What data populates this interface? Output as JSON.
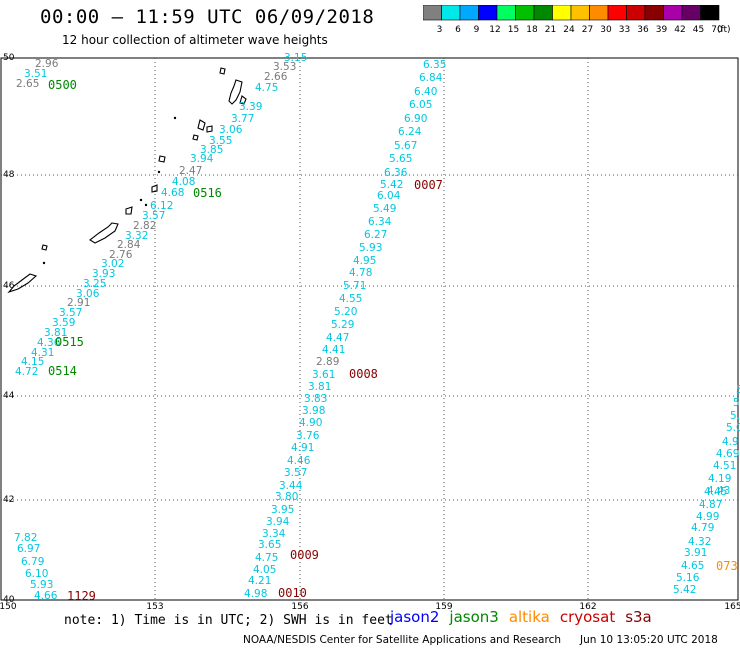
{
  "header": {
    "title": "00:00 – 11:59 UTC 06/09/2018",
    "subtitle": "12 hour collection of altimeter wave heights"
  },
  "colorbar": {
    "unit": "(ft)",
    "swatches": [
      {
        "label": "3",
        "color": "#808080"
      },
      {
        "label": "6",
        "color": "#00e8e8"
      },
      {
        "label": "9",
        "color": "#00a8ff"
      },
      {
        "label": "12",
        "color": "#0000ff"
      },
      {
        "label": "15",
        "color": "#00ff60"
      },
      {
        "label": "18",
        "color": "#00c000"
      },
      {
        "label": "21",
        "color": "#008800"
      },
      {
        "label": "24",
        "color": "#ffff00"
      },
      {
        "label": "27",
        "color": "#ffc000"
      },
      {
        "label": "30",
        "color": "#ff8c00"
      },
      {
        "label": "33",
        "color": "#ff0000"
      },
      {
        "label": "36",
        "color": "#cc0000"
      },
      {
        "label": "39",
        "color": "#880000"
      },
      {
        "label": "42",
        "color": "#aa00aa"
      },
      {
        "label": "45",
        "color": "#660066"
      },
      {
        "label": "70",
        "color": "#000000"
      }
    ]
  },
  "axes": {
    "lon_labels": [
      "150",
      "153",
      "156",
      "159",
      "162",
      "165"
    ],
    "lat_labels": [
      "50",
      "48",
      "46",
      "44",
      "42",
      "40"
    ]
  },
  "track_times": [
    "0500",
    "0516",
    "0515",
    "0514",
    "1129",
    "0007",
    "0008",
    "0009",
    "0010",
    "073"
  ],
  "readings": [
    {
      "t": "2.96",
      "c": "gray"
    },
    {
      "t": "3.51",
      "c": "cyan"
    },
    {
      "t": "2.65",
      "c": "gray"
    },
    {
      "t": "3.15",
      "c": "cyan"
    },
    {
      "t": "3.53",
      "c": "gray"
    },
    {
      "t": "2.66",
      "c": "gray"
    },
    {
      "t": "4.75",
      "c": "cyan"
    },
    {
      "t": "3.39",
      "c": "cyan"
    },
    {
      "t": "3.77",
      "c": "cyan"
    },
    {
      "t": "3.06",
      "c": "cyan"
    },
    {
      "t": "3.55",
      "c": "cyan"
    },
    {
      "t": "3.85",
      "c": "cyan"
    },
    {
      "t": "3.94",
      "c": "cyan"
    },
    {
      "t": "2.47",
      "c": "gray"
    },
    {
      "t": "4.08",
      "c": "cyan"
    },
    {
      "t": "4.68",
      "c": "cyan"
    },
    {
      "t": "6.12",
      "c": "cyan"
    },
    {
      "t": "3.57",
      "c": "cyan"
    },
    {
      "t": "2.82",
      "c": "gray"
    },
    {
      "t": "3.32",
      "c": "cyan"
    },
    {
      "t": "2.84",
      "c": "gray"
    },
    {
      "t": "2.76",
      "c": "gray"
    },
    {
      "t": "3.02",
      "c": "cyan"
    },
    {
      "t": "3.93",
      "c": "cyan"
    },
    {
      "t": "3.25",
      "c": "cyan"
    },
    {
      "t": "3.06",
      "c": "cyan"
    },
    {
      "t": "2.91",
      "c": "gray"
    },
    {
      "t": "3.57",
      "c": "cyan"
    },
    {
      "t": "3.59",
      "c": "cyan"
    },
    {
      "t": "3.81",
      "c": "cyan"
    },
    {
      "t": "4.36",
      "c": "cyan"
    },
    {
      "t": "4.31",
      "c": "cyan"
    },
    {
      "t": "4.15",
      "c": "cyan"
    },
    {
      "t": "4.72",
      "c": "cyan"
    },
    {
      "t": "6.35",
      "c": "cyan"
    },
    {
      "t": "6.84",
      "c": "cyan"
    },
    {
      "t": "6.40",
      "c": "cyan"
    },
    {
      "t": "6.05",
      "c": "cyan"
    },
    {
      "t": "6.90",
      "c": "cyan"
    },
    {
      "t": "6.24",
      "c": "cyan"
    },
    {
      "t": "5.67",
      "c": "cyan"
    },
    {
      "t": "5.65",
      "c": "cyan"
    },
    {
      "t": "6.36",
      "c": "cyan"
    },
    {
      "t": "5.42",
      "c": "cyan"
    },
    {
      "t": "6.04",
      "c": "cyan"
    },
    {
      "t": "5.49",
      "c": "cyan"
    },
    {
      "t": "6.34",
      "c": "cyan"
    },
    {
      "t": "6.27",
      "c": "cyan"
    },
    {
      "t": "5.93",
      "c": "cyan"
    },
    {
      "t": "4.95",
      "c": "cyan"
    },
    {
      "t": "4.78",
      "c": "cyan"
    },
    {
      "t": "5.71",
      "c": "cyan"
    },
    {
      "t": "4.55",
      "c": "cyan"
    },
    {
      "t": "5.20",
      "c": "cyan"
    },
    {
      "t": "5.29",
      "c": "cyan"
    },
    {
      "t": "4.47",
      "c": "cyan"
    },
    {
      "t": "4.41",
      "c": "cyan"
    },
    {
      "t": "2.89",
      "c": "gray"
    },
    {
      "t": "3.61",
      "c": "cyan"
    },
    {
      "t": "3.81",
      "c": "cyan"
    },
    {
      "t": "3.83",
      "c": "cyan"
    },
    {
      "t": "3.98",
      "c": "cyan"
    },
    {
      "t": "4.90",
      "c": "cyan"
    },
    {
      "t": "3.76",
      "c": "cyan"
    },
    {
      "t": "4.91",
      "c": "cyan"
    },
    {
      "t": "4.46",
      "c": "cyan"
    },
    {
      "t": "3.57",
      "c": "cyan"
    },
    {
      "t": "3.44",
      "c": "cyan"
    },
    {
      "t": "3.80",
      "c": "cyan"
    },
    {
      "t": "3.95",
      "c": "cyan"
    },
    {
      "t": "3.94",
      "c": "cyan"
    },
    {
      "t": "3.34",
      "c": "cyan"
    },
    {
      "t": "3.65",
      "c": "cyan"
    },
    {
      "t": "4.75",
      "c": "cyan"
    },
    {
      "t": "4.05",
      "c": "cyan"
    },
    {
      "t": "4.21",
      "c": "cyan"
    },
    {
      "t": "4.98",
      "c": "cyan"
    },
    {
      "t": "7.82",
      "c": "cyan"
    },
    {
      "t": "6.97",
      "c": "cyan"
    },
    {
      "t": "6.79",
      "c": "cyan"
    },
    {
      "t": "6.10",
      "c": "cyan"
    },
    {
      "t": "5.93",
      "c": "cyan"
    },
    {
      "t": "4.66",
      "c": "cyan"
    },
    {
      "t": "5",
      "c": "cyan"
    },
    {
      "t": "5.0",
      "c": "cyan"
    },
    {
      "t": "5.",
      "c": "cyan"
    },
    {
      "t": "5.0",
      "c": "cyan"
    },
    {
      "t": "4.9",
      "c": "cyan"
    },
    {
      "t": "4.69",
      "c": "cyan"
    },
    {
      "t": "4.51",
      "c": "cyan"
    },
    {
      "t": "4.19",
      "c": "cyan"
    },
    {
      "t": "4.43",
      "c": "cyan"
    },
    {
      "t": "4.45",
      "c": "cyan"
    },
    {
      "t": "4.87",
      "c": "cyan"
    },
    {
      "t": "4.99",
      "c": "cyan"
    },
    {
      "t": "4.79",
      "c": "cyan"
    },
    {
      "t": "4.32",
      "c": "cyan"
    },
    {
      "t": "3.91",
      "c": "cyan"
    },
    {
      "t": "4.65",
      "c": "cyan"
    },
    {
      "t": "5.16",
      "c": "cyan"
    },
    {
      "t": "5.42",
      "c": "cyan"
    }
  ],
  "legend": {
    "satellites": [
      {
        "name": "jason2",
        "color": "#0000ff"
      },
      {
        "name": "jason3",
        "color": "#008800"
      },
      {
        "name": "altika",
        "color": "#ff8c00"
      },
      {
        "name": "cryosat",
        "color": "#cc0000"
      },
      {
        "name": "s3a",
        "color": "#880000"
      }
    ]
  },
  "footer": {
    "note": "note: 1) Time is in UTC; 2) SWH is in feet",
    "credit": "NOAA/NESDIS Center for Satellite Applications and Research",
    "issued": "Jun 10 13:05:20 UTC 2018"
  },
  "colors": {
    "cyan": "#00c8e0",
    "gray": "#7a7a7a",
    "time_green": "#008800",
    "time_red": "#880000",
    "time_orange": "#ff8c00"
  }
}
